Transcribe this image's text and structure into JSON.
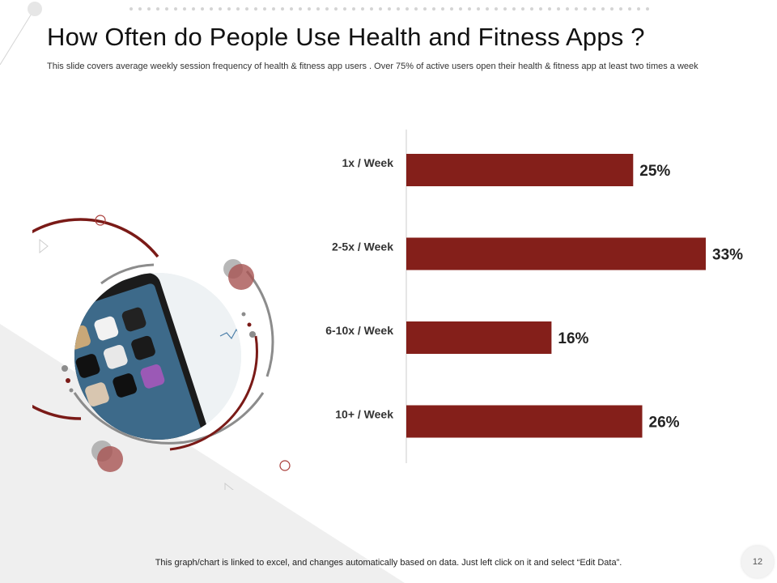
{
  "slide": {
    "title": "How Often do People Use Health and Fitness Apps ?",
    "subtitle": "This slide covers average weekly session frequency of health & fitness app users . Over 75% of active users open their health & fitness app at least two times a week",
    "footnote": "This graph/chart is linked to excel, and changes automatically based on data. Just left click on it and select “Edit Data”.",
    "page_number": "12"
  },
  "colors": {
    "bar": "#841f1a",
    "accent_dark_red": "#7a1a17",
    "accent_gray": "#8a8a8a"
  },
  "chart_data": {
    "type": "bar",
    "orientation": "horizontal",
    "title": "",
    "xlabel": "",
    "ylabel": "",
    "categories": [
      "1x / Week",
      "2-5x / Week",
      "6-10x / Week",
      "10+ / Week"
    ],
    "values": [
      25,
      33,
      16,
      26
    ],
    "labels": [
      "25%",
      "33%",
      "16%",
      "26%"
    ],
    "xlim": [
      0,
      33
    ],
    "grid": false,
    "legend": "none"
  }
}
